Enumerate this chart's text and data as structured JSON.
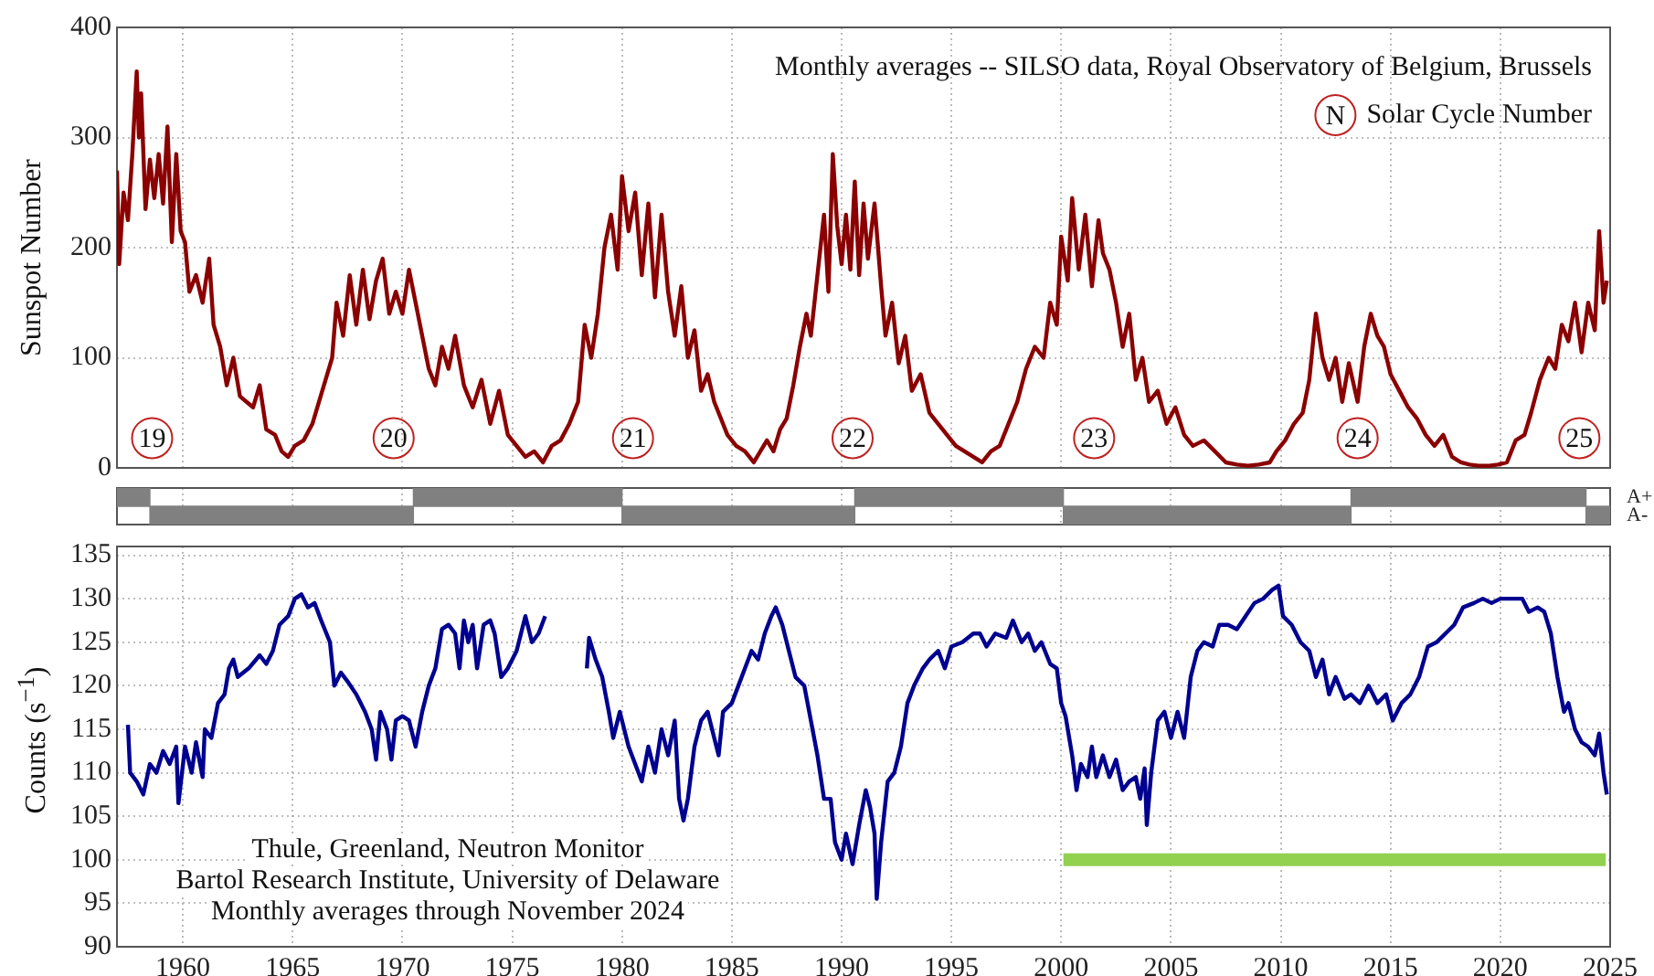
{
  "chart_data": [
    {
      "type": "line",
      "ylabel": "Sunspot Number",
      "xlim": [
        1957,
        2025
      ],
      "xticks": [
        1960,
        1965,
        1970,
        1975,
        1980,
        1985,
        1990,
        1995,
        2000,
        2005,
        2010,
        2015,
        2020,
        2025
      ],
      "ylim": [
        0,
        400
      ],
      "yticks": [
        0,
        100,
        200,
        300,
        400
      ],
      "tick_labels": "y",
      "grid": true,
      "annotations": [
        "Monthly averages -- SILSO data, Royal Observatory of Belgium, Brussels",
        "N",
        "Solar Cycle Number",
        {
          "text": "19",
          "x": 1958.6,
          "y": 27
        },
        {
          "text": "20",
          "x": 1969.6,
          "y": 27
        },
        {
          "text": "21",
          "x": 1980.5,
          "y": 27
        },
        {
          "text": "22",
          "x": 1990.5,
          "y": 27
        },
        {
          "text": "23",
          "x": 2001.5,
          "y": 27
        },
        {
          "text": "24",
          "x": 2013.5,
          "y": 27
        },
        {
          "text": "25",
          "x": 2023.6,
          "y": 27
        }
      ],
      "series": [
        {
          "color": "#8b0000",
          "x": [
            1957.0,
            1957.1,
            1957.3,
            1957.5,
            1957.7,
            1957.9,
            1958.0,
            1958.1,
            1958.3,
            1958.5,
            1958.7,
            1958.9,
            1959.1,
            1959.3,
            1959.5,
            1959.7,
            1959.9,
            1960.1,
            1960.3,
            1960.6,
            1960.9,
            1961.2,
            1961.4,
            1961.7,
            1962.0,
            1962.3,
            1962.6,
            1962.9,
            1963.2,
            1963.5,
            1963.8,
            1964.2,
            1964.5,
            1964.8,
            1965.1,
            1965.5,
            1965.9,
            1966.2,
            1966.5,
            1966.8,
            1967.0,
            1967.3,
            1967.6,
            1967.9,
            1968.2,
            1968.5,
            1968.8,
            1969.1,
            1969.4,
            1969.7,
            1970.0,
            1970.3,
            1970.6,
            1970.9,
            1971.2,
            1971.5,
            1971.8,
            1972.1,
            1972.4,
            1972.8,
            1973.2,
            1973.6,
            1974.0,
            1974.4,
            1974.8,
            1975.2,
            1975.6,
            1976.0,
            1976.4,
            1976.8,
            1977.2,
            1977.6,
            1978.0,
            1978.3,
            1978.6,
            1978.9,
            1979.2,
            1979.5,
            1979.8,
            1980.0,
            1980.3,
            1980.6,
            1980.9,
            1981.2,
            1981.5,
            1981.8,
            1982.1,
            1982.4,
            1982.7,
            1983.0,
            1983.3,
            1983.6,
            1983.9,
            1984.2,
            1984.5,
            1984.8,
            1985.2,
            1985.6,
            1986.0,
            1986.3,
            1986.6,
            1986.9,
            1987.2,
            1987.5,
            1987.8,
            1988.1,
            1988.4,
            1988.6,
            1988.9,
            1989.2,
            1989.4,
            1989.6,
            1989.8,
            1990.0,
            1990.2,
            1990.4,
            1990.6,
            1990.8,
            1991.0,
            1991.2,
            1991.5,
            1991.8,
            1992.0,
            1992.3,
            1992.6,
            1992.9,
            1993.2,
            1993.6,
            1994.0,
            1994.4,
            1994.8,
            1995.2,
            1995.6,
            1996.0,
            1996.4,
            1996.8,
            1997.2,
            1997.6,
            1998.0,
            1998.4,
            1998.8,
            1999.2,
            1999.5,
            1999.8,
            2000.0,
            2000.3,
            2000.5,
            2000.8,
            2001.1,
            2001.4,
            2001.7,
            2001.9,
            2002.2,
            2002.5,
            2002.8,
            2003.1,
            2003.4,
            2003.7,
            2004.0,
            2004.4,
            2004.8,
            2005.2,
            2005.6,
            2006.0,
            2006.5,
            2007.0,
            2007.5,
            2008.0,
            2008.5,
            2009.0,
            2009.5,
            2009.8,
            2010.2,
            2010.6,
            2011.0,
            2011.3,
            2011.6,
            2011.9,
            2012.2,
            2012.5,
            2012.8,
            2013.1,
            2013.5,
            2013.8,
            2014.1,
            2014.4,
            2014.7,
            2015.0,
            2015.4,
            2015.8,
            2016.2,
            2016.6,
            2017.0,
            2017.4,
            2017.8,
            2018.2,
            2018.6,
            2019.0,
            2019.5,
            2019.9,
            2020.3,
            2020.7,
            2021.1,
            2021.4,
            2021.8,
            2022.2,
            2022.5,
            2022.8,
            2023.1,
            2023.4,
            2023.7,
            2024.0,
            2024.3,
            2024.5,
            2024.7,
            2024.85
          ],
          "values": [
            270,
            185,
            250,
            225,
            285,
            360,
            300,
            340,
            235,
            280,
            245,
            285,
            240,
            310,
            205,
            285,
            215,
            205,
            160,
            175,
            150,
            190,
            130,
            110,
            75,
            100,
            65,
            60,
            55,
            75,
            35,
            30,
            15,
            10,
            20,
            25,
            40,
            60,
            80,
            100,
            150,
            120,
            175,
            130,
            180,
            135,
            170,
            190,
            140,
            160,
            140,
            180,
            150,
            120,
            90,
            75,
            110,
            90,
            120,
            75,
            55,
            80,
            40,
            70,
            30,
            20,
            10,
            15,
            5,
            20,
            25,
            40,
            60,
            130,
            100,
            140,
            200,
            230,
            180,
            265,
            215,
            250,
            175,
            240,
            155,
            230,
            160,
            120,
            165,
            100,
            125,
            70,
            85,
            60,
            45,
            30,
            20,
            15,
            5,
            15,
            25,
            15,
            35,
            45,
            75,
            110,
            140,
            120,
            175,
            230,
            160,
            285,
            220,
            185,
            230,
            180,
            260,
            175,
            240,
            190,
            240,
            165,
            120,
            150,
            95,
            120,
            70,
            85,
            50,
            40,
            30,
            20,
            15,
            10,
            5,
            15,
            20,
            40,
            60,
            90,
            110,
            100,
            150,
            130,
            210,
            170,
            245,
            180,
            230,
            165,
            225,
            195,
            180,
            150,
            110,
            140,
            80,
            100,
            60,
            70,
            40,
            55,
            30,
            20,
            25,
            15,
            5,
            3,
            2,
            3,
            5,
            15,
            25,
            40,
            50,
            80,
            140,
            100,
            80,
            100,
            60,
            95,
            60,
            110,
            140,
            120,
            110,
            85,
            70,
            55,
            45,
            30,
            20,
            30,
            10,
            5,
            3,
            2,
            2,
            3,
            5,
            25,
            30,
            50,
            80,
            100,
            90,
            130,
            115,
            150,
            105,
            150,
            125,
            215,
            150,
            170
          ]
        }
      ]
    },
    {
      "type": "bar",
      "orientation": "horizontal",
      "categories": [
        "A+",
        "A-"
      ],
      "xlim": [
        1957,
        2025
      ],
      "xticks": [
        1960,
        1965,
        1970,
        1975,
        1980,
        1985,
        1990,
        1995,
        2000,
        2005,
        2010,
        2015,
        2020,
        2025
      ],
      "tick_labels": "y",
      "grid": "x",
      "series": [
        {
          "color": "#808080",
          "base": [
            1957,
            1958.5
          ],
          "values": [
            1.5,
            12.0
          ]
        },
        {
          "color": "#808080",
          "base": [
            1970.5,
            1980.0
          ],
          "values": [
            9.5,
            10.6
          ]
        },
        {
          "color": "#808080",
          "base": [
            1990.6,
            2000.1
          ],
          "values": [
            9.5,
            13.1
          ]
        },
        {
          "color": "#808080",
          "base": [
            2013.2,
            2023.9
          ],
          "values": [
            10.7,
            1.1
          ]
        }
      ]
    },
    {
      "type": "line",
      "ylabel": "Counts (s$^{−1}$)",
      "xlim": [
        1957,
        2025
      ],
      "xticks": [
        1960,
        1965,
        1970,
        1975,
        1980,
        1985,
        1990,
        1995,
        2000,
        2005,
        2010,
        2015,
        2020,
        2025
      ],
      "ylim": [
        90,
        136
      ],
      "yticks": [
        90,
        95,
        100,
        105,
        110,
        115,
        120,
        125,
        130,
        135
      ],
      "grid": true,
      "annotations": [
        "Thule, Greenland, Neutron Monitor",
        "Bartol Research Institute, University of Delaware",
        "Monthly averages through November 2024"
      ],
      "series": [
        {
          "color": "#000090",
          "x": [
            1957.5,
            1957.6,
            1957.9,
            1958.2,
            1958.5,
            1958.8,
            1959.1,
            1959.4,
            1959.7,
            1959.8,
            1960.1,
            1960.4,
            1960.6,
            1960.9,
            1961.0,
            1961.3,
            1961.6,
            1961.9,
            1962.1,
            1962.3,
            1962.5,
            1963.0,
            1963.5,
            1963.8,
            1964.1,
            1964.4,
            1964.8,
            1965.1,
            1965.4,
            1965.7,
            1966.0,
            1966.3,
            1966.7,
            1966.9,
            1967.2,
            1967.5,
            1967.9,
            1968.3,
            1968.6,
            1968.8,
            1969.0,
            1969.3,
            1969.5,
            1969.7,
            1970.0,
            1970.3,
            1970.6,
            1970.9,
            1971.2,
            1971.5,
            1971.8,
            1972.1,
            1972.4,
            1972.6,
            1972.8,
            1973.0,
            1973.2,
            1973.4,
            1973.7,
            1974.0,
            1974.2,
            1974.5,
            1974.8,
            1975.2,
            1975.6,
            1975.9,
            1976.2,
            1976.5,
            1977.5,
            1978.4,
            1978.5,
            1978.8,
            1979.1,
            1979.4,
            1979.6,
            1979.9,
            1980.1,
            1980.3,
            1980.6,
            1980.9,
            1981.2,
            1981.5,
            1981.8,
            1982.1,
            1982.4,
            1982.6,
            1982.8,
            1983.0,
            1983.3,
            1983.6,
            1983.9,
            1984.2,
            1984.4,
            1984.6,
            1985.0,
            1985.3,
            1985.6,
            1985.9,
            1986.2,
            1986.5,
            1986.8,
            1987.0,
            1987.3,
            1987.6,
            1987.9,
            1988.3,
            1988.6,
            1988.9,
            1989.2,
            1989.5,
            1989.7,
            1990.0,
            1990.2,
            1990.5,
            1990.8,
            1991.1,
            1991.3,
            1991.5,
            1991.6,
            1991.8,
            1992.1,
            1992.4,
            1992.7,
            1993.0,
            1993.3,
            1993.7,
            1994.0,
            1994.4,
            1994.7,
            1995.0,
            1995.5,
            1996.0,
            1996.3,
            1996.6,
            1997.0,
            1997.5,
            1997.8,
            1998.2,
            1998.5,
            1998.8,
            1999.1,
            1999.5,
            1999.8,
            2000.0,
            2000.2,
            2000.5,
            2000.7,
            2000.9,
            2001.2,
            2001.4,
            2001.6,
            2001.9,
            2002.2,
            2002.5,
            2002.8,
            2003.1,
            2003.4,
            2003.6,
            2003.8,
            2003.9,
            2004.1,
            2004.4,
            2004.7,
            2005.0,
            2005.3,
            2005.6,
            2005.9,
            2006.2,
            2006.5,
            2006.9,
            2007.2,
            2007.6,
            2008.0,
            2008.4,
            2008.8,
            2009.2,
            2009.6,
            2009.9,
            2010.1,
            2010.5,
            2010.9,
            2011.3,
            2011.6,
            2011.9,
            2012.2,
            2012.5,
            2012.9,
            2013.2,
            2013.6,
            2014.0,
            2014.4,
            2014.8,
            2015.1,
            2015.5,
            2015.9,
            2016.3,
            2016.7,
            2017.1,
            2017.5,
            2017.9,
            2018.3,
            2018.8,
            2019.2,
            2019.6,
            2020.0,
            2020.5,
            2021.0,
            2021.3,
            2021.7,
            2022.0,
            2022.3,
            2022.6,
            2022.9,
            2023.1,
            2023.4,
            2023.7,
            2024.0,
            2024.3,
            2024.5,
            2024.7,
            2024.85
          ],
          "values": [
            115.5,
            110,
            109,
            107.5,
            111,
            110,
            112.5,
            111,
            113,
            106.5,
            113,
            110,
            113.5,
            109.5,
            115,
            114,
            118,
            119,
            122,
            123,
            121,
            122,
            123.5,
            122.5,
            124,
            127,
            128,
            130,
            130.5,
            129,
            129.5,
            127.5,
            125,
            120,
            121.5,
            120.5,
            119,
            117,
            115,
            111.5,
            117,
            115,
            111.5,
            116,
            116.5,
            116,
            113,
            117,
            120,
            122,
            126.5,
            127,
            126,
            122,
            127.5,
            125,
            127,
            122,
            127,
            127.5,
            126,
            121,
            122,
            124,
            128,
            125,
            126,
            128,
            null,
            122,
            125.5,
            123,
            121,
            117,
            114,
            117,
            115,
            113,
            111,
            109,
            113,
            110,
            115,
            112,
            116,
            107,
            104.5,
            107,
            113,
            116,
            117,
            114,
            112,
            117,
            118,
            120,
            122,
            124,
            123,
            126,
            128,
            129,
            127,
            124,
            121,
            120,
            116,
            112,
            107,
            107,
            102,
            100,
            103,
            99.5,
            104,
            108,
            106,
            103,
            95.5,
            102,
            109,
            110,
            113,
            118,
            120,
            122,
            123,
            124,
            122,
            124.5,
            125,
            126,
            126,
            124.5,
            126,
            125.5,
            127.5,
            125,
            126,
            124,
            125,
            122.5,
            122,
            118,
            116.5,
            112,
            108,
            111,
            109.5,
            113,
            109.5,
            112,
            109.5,
            111.5,
            108,
            109,
            109.5,
            107,
            110.5,
            104,
            110,
            116,
            117,
            114,
            117,
            114,
            121,
            124,
            125,
            124.5,
            127,
            127,
            126.5,
            128,
            129.5,
            130,
            131,
            131.5,
            128,
            127,
            125,
            124,
            121,
            123,
            119,
            121,
            118.5,
            119,
            118,
            120,
            118,
            119,
            116,
            118,
            119,
            121,
            124.5,
            125,
            126,
            127,
            129,
            129.5,
            130,
            129.5,
            130,
            130,
            130,
            128.5,
            129,
            128.5,
            126,
            121,
            117,
            118,
            115,
            113.5,
            113,
            112,
            114.5,
            110,
            107.5
          ]
        },
        {
          "color": "#92d050",
          "x": [
            2000.1,
            2024.8
          ],
          "values": [
            100,
            100
          ]
        }
      ]
    }
  ]
}
